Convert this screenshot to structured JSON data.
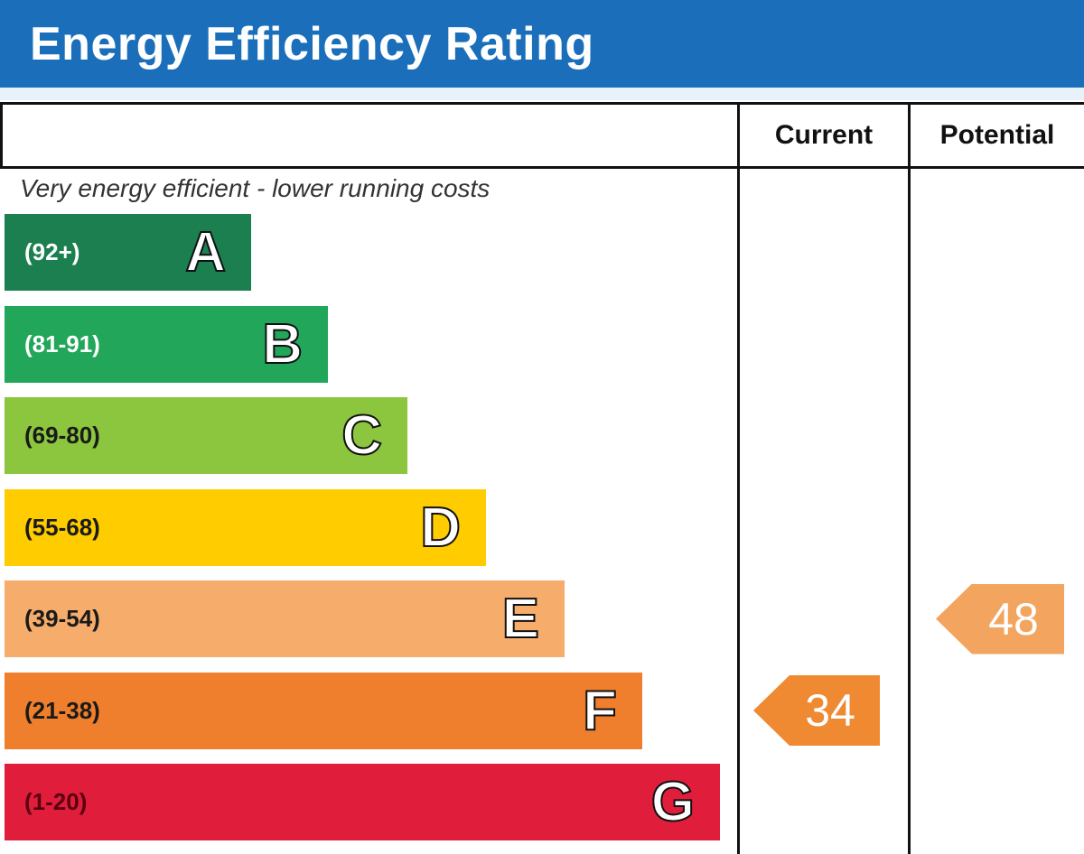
{
  "header": {
    "title": "Energy Efficiency Rating"
  },
  "columns": {
    "current": "Current",
    "potential": "Potential"
  },
  "subtitle": "Very energy efficient - lower running costs",
  "chart_data": {
    "type": "bar",
    "bands": [
      {
        "letter": "A",
        "range": "(92+)",
        "color": "#1b7f4f"
      },
      {
        "letter": "B",
        "range": "(81-91)",
        "color": "#22a65a"
      },
      {
        "letter": "C",
        "range": "(69-80)",
        "color": "#8cc63f"
      },
      {
        "letter": "D",
        "range": "(55-68)",
        "color": "#ffcc00"
      },
      {
        "letter": "E",
        "range": "(39-54)",
        "color": "#f6ad6b"
      },
      {
        "letter": "F",
        "range": "(21-38)",
        "color": "#f07f2d"
      },
      {
        "letter": "G",
        "range": "(1-20)",
        "color": "#e01e3c"
      }
    ],
    "current": {
      "value": "34",
      "band": "F",
      "color": "#ef8a33"
    },
    "potential": {
      "value": "48",
      "band": "E",
      "color": "#f3a560"
    }
  }
}
